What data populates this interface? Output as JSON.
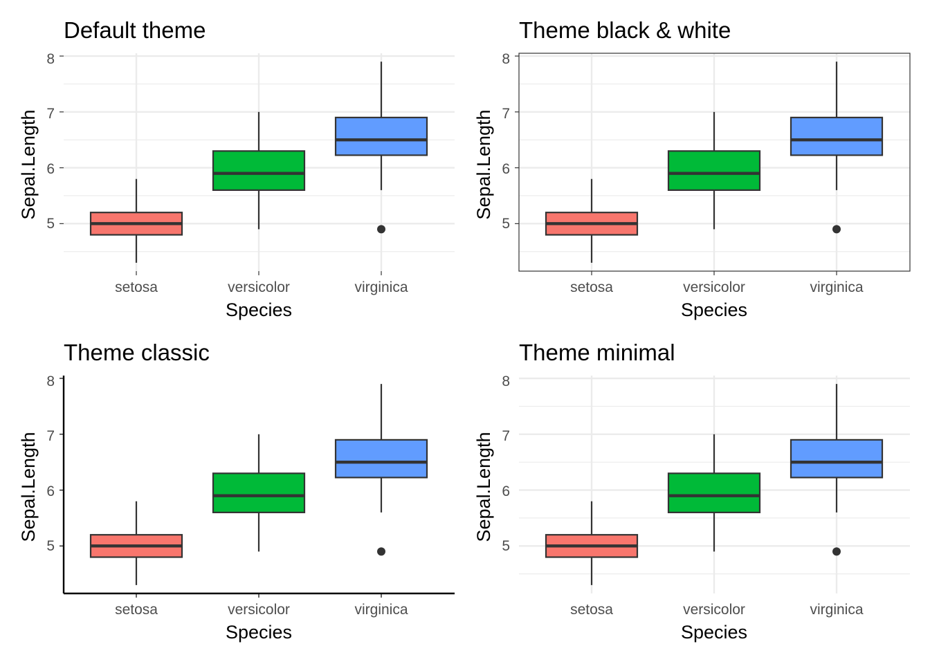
{
  "chart_data": [
    {
      "type": "boxplot",
      "theme": "default",
      "title": "Default theme",
      "xlabel": "Species",
      "ylabel": "Sepal.Length",
      "categories": [
        "setosa",
        "versicolor",
        "virginica"
      ],
      "yticks": [
        "5",
        "6",
        "7",
        "8"
      ],
      "ylim": [
        4.15,
        8.05
      ],
      "grid": "major+minor",
      "panel_background": "#ffffff",
      "boxes": [
        {
          "category": "setosa",
          "lower_whisker": 4.3,
          "q1": 4.8,
          "median": 5.0,
          "q3": 5.2,
          "upper_whisker": 5.8,
          "outliers": [],
          "fill": "#F8766D"
        },
        {
          "category": "versicolor",
          "lower_whisker": 4.9,
          "q1": 5.6,
          "median": 5.9,
          "q3": 6.3,
          "upper_whisker": 7.0,
          "outliers": [],
          "fill": "#00BA38"
        },
        {
          "category": "virginica",
          "lower_whisker": 5.6,
          "q1": 6.225,
          "median": 6.5,
          "q3": 6.9,
          "upper_whisker": 7.9,
          "outliers": [
            4.9
          ],
          "fill": "#619CFF"
        }
      ]
    },
    {
      "type": "boxplot",
      "theme": "bw",
      "title": "Theme black & white",
      "xlabel": "Species",
      "ylabel": "Sepal.Length",
      "categories": [
        "setosa",
        "versicolor",
        "virginica"
      ],
      "yticks": [
        "5",
        "6",
        "7",
        "8"
      ],
      "ylim": [
        4.15,
        8.05
      ],
      "grid": "major+minor",
      "panel_border": true,
      "boxes": [
        {
          "category": "setosa",
          "lower_whisker": 4.3,
          "q1": 4.8,
          "median": 5.0,
          "q3": 5.2,
          "upper_whisker": 5.8,
          "outliers": [],
          "fill": "#F8766D"
        },
        {
          "category": "versicolor",
          "lower_whisker": 4.9,
          "q1": 5.6,
          "median": 5.9,
          "q3": 6.3,
          "upper_whisker": 7.0,
          "outliers": [],
          "fill": "#00BA38"
        },
        {
          "category": "virginica",
          "lower_whisker": 5.6,
          "q1": 6.225,
          "median": 6.5,
          "q3": 6.9,
          "upper_whisker": 7.9,
          "outliers": [
            4.9
          ],
          "fill": "#619CFF"
        }
      ]
    },
    {
      "type": "boxplot",
      "theme": "classic",
      "title": "Theme classic",
      "xlabel": "Species",
      "ylabel": "Sepal.Length",
      "categories": [
        "setosa",
        "versicolor",
        "virginica"
      ],
      "yticks": [
        "5",
        "6",
        "7",
        "8"
      ],
      "ylim": [
        4.15,
        8.05
      ],
      "grid": "none",
      "axis_lines": true,
      "boxes": [
        {
          "category": "setosa",
          "lower_whisker": 4.3,
          "q1": 4.8,
          "median": 5.0,
          "q3": 5.2,
          "upper_whisker": 5.8,
          "outliers": [],
          "fill": "#F8766D"
        },
        {
          "category": "versicolor",
          "lower_whisker": 4.9,
          "q1": 5.6,
          "median": 5.9,
          "q3": 6.3,
          "upper_whisker": 7.0,
          "outliers": [],
          "fill": "#00BA38"
        },
        {
          "category": "virginica",
          "lower_whisker": 5.6,
          "q1": 6.225,
          "median": 6.5,
          "q3": 6.9,
          "upper_whisker": 7.9,
          "outliers": [
            4.9
          ],
          "fill": "#619CFF"
        }
      ]
    },
    {
      "type": "boxplot",
      "theme": "minimal",
      "title": "Theme minimal",
      "xlabel": "Species",
      "ylabel": "Sepal.Length",
      "categories": [
        "setosa",
        "versicolor",
        "virginica"
      ],
      "yticks": [
        "5",
        "6",
        "7",
        "8"
      ],
      "ylim": [
        4.15,
        8.05
      ],
      "grid": "major+minor",
      "boxes": [
        {
          "category": "setosa",
          "lower_whisker": 4.3,
          "q1": 4.8,
          "median": 5.0,
          "q3": 5.2,
          "upper_whisker": 5.8,
          "outliers": [],
          "fill": "#F8766D"
        },
        {
          "category": "versicolor",
          "lower_whisker": 4.9,
          "q1": 5.6,
          "median": 5.9,
          "q3": 6.3,
          "upper_whisker": 7.0,
          "outliers": [],
          "fill": "#00BA38"
        },
        {
          "category": "virginica",
          "lower_whisker": 5.6,
          "q1": 6.225,
          "median": 6.5,
          "q3": 6.9,
          "upper_whisker": 7.9,
          "outliers": [
            4.9
          ],
          "fill": "#619CFF"
        }
      ]
    }
  ]
}
